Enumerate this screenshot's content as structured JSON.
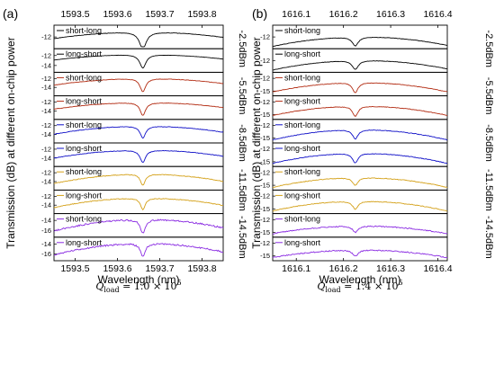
{
  "figure": {
    "ylabel": "Transmission (dB) at different on-chip power",
    "xlabel": "Wavelength (nm)"
  },
  "chart_data": [
    {
      "type": "line",
      "panel": "(a)",
      "xlabel": "Wavelength (nm)",
      "ylabel": "Transmission (dB) at different on-chip power",
      "xlim": [
        1593.45,
        1593.85
      ],
      "xticks": [
        "1593.5",
        "1593.6",
        "1593.7",
        "1593.8"
      ],
      "xtick_values": [
        1593.5,
        1593.6,
        1593.7,
        1593.8
      ],
      "q_label": {
        "prefix": "Q",
        "sub": "load",
        "text": " = 1.0 × 10",
        "sup": "5"
      },
      "resonance": 1593.66,
      "power_groups": [
        {
          "label": "-2.5dBm",
          "color": "#000000"
        },
        {
          "label": "-5.5dBm",
          "color": "#b22a10"
        },
        {
          "label": "-8.5dBm",
          "color": "#1010c8"
        },
        {
          "label": "-11.5dBm",
          "color": "#d4a017"
        },
        {
          "label": "-14.5dBm",
          "color": "#8a2be2"
        }
      ],
      "series": [
        {
          "name": "short-long",
          "ylim": [
            -13,
            -11
          ],
          "yticks": [
            "-12"
          ],
          "ytick_values": [
            -12
          ],
          "baseline": -11.5,
          "dip": -13.2,
          "width": 0.01,
          "slope": 0,
          "curv": 0.6,
          "noise": 0.02
        },
        {
          "name": "long-short",
          "ylim": [
            -15,
            -11
          ],
          "yticks": [
            "-12",
            "-14"
          ],
          "ytick_values": [
            -12,
            -14
          ],
          "baseline": -11.8,
          "dip": -14.5,
          "width": 0.009,
          "slope": 0,
          "curv": 1.0,
          "noise": 0.02
        },
        {
          "name": "short-long",
          "ylim": [
            -15.5,
            -11
          ],
          "yticks": [
            "-12",
            "-14"
          ],
          "ytick_values": [
            -12,
            -14
          ],
          "baseline": -12.0,
          "dip": -15.0,
          "width": 0.008,
          "slope": 0.1,
          "curv": 1.3,
          "noise": 0.05
        },
        {
          "name": "long-short",
          "ylim": [
            -15.5,
            -11
          ],
          "yticks": [
            "-12",
            "-14"
          ],
          "ytick_values": [
            -12,
            -14
          ],
          "baseline": -12.1,
          "dip": -15.0,
          "width": 0.008,
          "slope": 0.1,
          "curv": 1.3,
          "noise": 0.05
        },
        {
          "name": "short-long",
          "ylim": [
            -15.5,
            -11
          ],
          "yticks": [
            "-12",
            "-14"
          ],
          "ytick_values": [
            -12,
            -14
          ],
          "baseline": -12.1,
          "dip": -14.8,
          "width": 0.008,
          "slope": 0.1,
          "curv": 1.6,
          "noise": 0.06
        },
        {
          "name": "long-short",
          "ylim": [
            -15.5,
            -11
          ],
          "yticks": [
            "-12",
            "-14"
          ],
          "ytick_values": [
            -12,
            -14
          ],
          "baseline": -12.2,
          "dip": -15.0,
          "width": 0.008,
          "slope": 0.1,
          "curv": 1.6,
          "noise": 0.06
        },
        {
          "name": "short-long",
          "ylim": [
            -15.5,
            -11
          ],
          "yticks": [
            "-12",
            "-14"
          ],
          "ytick_values": [
            -12,
            -14
          ],
          "baseline": -12.3,
          "dip": -14.8,
          "width": 0.007,
          "slope": 0.1,
          "curv": 1.9,
          "noise": 0.08
        },
        {
          "name": "long-short",
          "ylim": [
            -15.5,
            -11
          ],
          "yticks": [
            "-12",
            "-14"
          ],
          "ytick_values": [
            -12,
            -14
          ],
          "baseline": -12.4,
          "dip": -15.0,
          "width": 0.007,
          "slope": 0.1,
          "curv": 1.9,
          "noise": 0.08
        },
        {
          "name": "short-long",
          "ylim": [
            -17,
            -13
          ],
          "yticks": [
            "-14",
            "-16"
          ],
          "ytick_values": [
            -14,
            -16
          ],
          "baseline": -13.8,
          "dip": -16.6,
          "width": 0.007,
          "slope": 0.2,
          "curv": 2.0,
          "noise": 0.15
        },
        {
          "name": "long-short",
          "ylim": [
            -17,
            -13
          ],
          "yticks": [
            "-14",
            "-16"
          ],
          "ytick_values": [
            -14,
            -16
          ],
          "baseline": -13.9,
          "dip": -16.5,
          "width": 0.007,
          "slope": 0.2,
          "curv": 2.0,
          "noise": 0.15
        }
      ]
    },
    {
      "type": "line",
      "panel": "(b)",
      "xlabel": "Wavelength (nm)",
      "ylabel": "Transmission (dB) at different on-chip power",
      "xlim": [
        1616.05,
        1616.42
      ],
      "xticks": [
        "1616.1",
        "1616.2",
        "1616.3",
        "1616.4"
      ],
      "xtick_values": [
        1616.1,
        1616.2,
        1616.3,
        1616.4
      ],
      "q_label": {
        "prefix": "Q",
        "sub": "load",
        "text": " = 1.4 × 10",
        "sup": "5"
      },
      "resonance": 1616.225,
      "power_groups": [
        {
          "label": "-2.5dBm",
          "color": "#000000"
        },
        {
          "label": "-5.5dBm",
          "color": "#b22a10"
        },
        {
          "label": "-8.5dBm",
          "color": "#1010c8"
        },
        {
          "label": "-11.5dBm",
          "color": "#d4a017"
        },
        {
          "label": "-14.5dBm",
          "color": "#8a2be2"
        }
      ],
      "series": [
        {
          "name": "short-long",
          "ylim": [
            -13,
            -11
          ],
          "yticks": [
            "-12"
          ],
          "ytick_values": [
            -12
          ],
          "baseline": -12.0,
          "dip": -12.9,
          "width": 0.008,
          "slope": 0.3,
          "curv": 0.9,
          "noise": 0.02
        },
        {
          "name": "long-short",
          "ylim": [
            -13,
            -11
          ],
          "yticks": [
            "-12"
          ],
          "ytick_values": [
            -12
          ],
          "baseline": -12.0,
          "dip": -12.9,
          "width": 0.008,
          "slope": 0.3,
          "curv": 0.9,
          "noise": 0.02
        },
        {
          "name": "short-long",
          "ylim": [
            -15.7,
            -11
          ],
          "yticks": [
            "-12",
            "-15"
          ],
          "ytick_values": [
            -12,
            -15
          ],
          "baseline": -13.0,
          "dip": -15.4,
          "width": 0.007,
          "slope": 0.5,
          "curv": 2.2,
          "noise": 0.06
        },
        {
          "name": "long-short",
          "ylim": [
            -15.7,
            -11
          ],
          "yticks": [
            "-12",
            "-15"
          ],
          "ytick_values": [
            -12,
            -15
          ],
          "baseline": -13.0,
          "dip": -15.4,
          "width": 0.007,
          "slope": 0.5,
          "curv": 2.2,
          "noise": 0.06
        },
        {
          "name": "short-long",
          "ylim": [
            -15.7,
            -11
          ],
          "yticks": [
            "-12",
            "-15"
          ],
          "ytick_values": [
            -12,
            -15
          ],
          "baseline": -13.0,
          "dip": -15.2,
          "width": 0.007,
          "slope": 0.5,
          "curv": 2.4,
          "noise": 0.07
        },
        {
          "name": "long-short",
          "ylim": [
            -15.7,
            -11
          ],
          "yticks": [
            "-12",
            "-15"
          ],
          "ytick_values": [
            -12,
            -15
          ],
          "baseline": -13.0,
          "dip": -15.3,
          "width": 0.007,
          "slope": 0.5,
          "curv": 2.4,
          "noise": 0.07
        },
        {
          "name": "short-long",
          "ylim": [
            -15.7,
            -11
          ],
          "yticks": [
            "-12",
            "-15"
          ],
          "ytick_values": [
            -12,
            -15
          ],
          "baseline": -13.2,
          "dip": -15.0,
          "width": 0.007,
          "slope": 0.5,
          "curv": 2.3,
          "noise": 0.08
        },
        {
          "name": "long-short",
          "ylim": [
            -15.7,
            -11
          ],
          "yticks": [
            "-12",
            "-15"
          ],
          "ytick_values": [
            -12,
            -15
          ],
          "baseline": -13.2,
          "dip": -15.1,
          "width": 0.007,
          "slope": 0.5,
          "curv": 2.3,
          "noise": 0.08
        },
        {
          "name": "short-long",
          "ylim": [
            -15.7,
            -11
          ],
          "yticks": [
            "-12",
            "-15"
          ],
          "ytick_values": [
            -12,
            -15
          ],
          "baseline": -13.5,
          "dip": -15.0,
          "width": 0.007,
          "slope": 0.4,
          "curv": 1.8,
          "noise": 0.12
        },
        {
          "name": "long-short",
          "ylim": [
            -15.7,
            -11
          ],
          "yticks": [
            "-12",
            "-15"
          ],
          "ytick_values": [
            -12,
            -15
          ],
          "baseline": -13.6,
          "dip": -15.1,
          "width": 0.007,
          "slope": 0.4,
          "curv": 1.8,
          "noise": 0.12
        }
      ]
    }
  ]
}
